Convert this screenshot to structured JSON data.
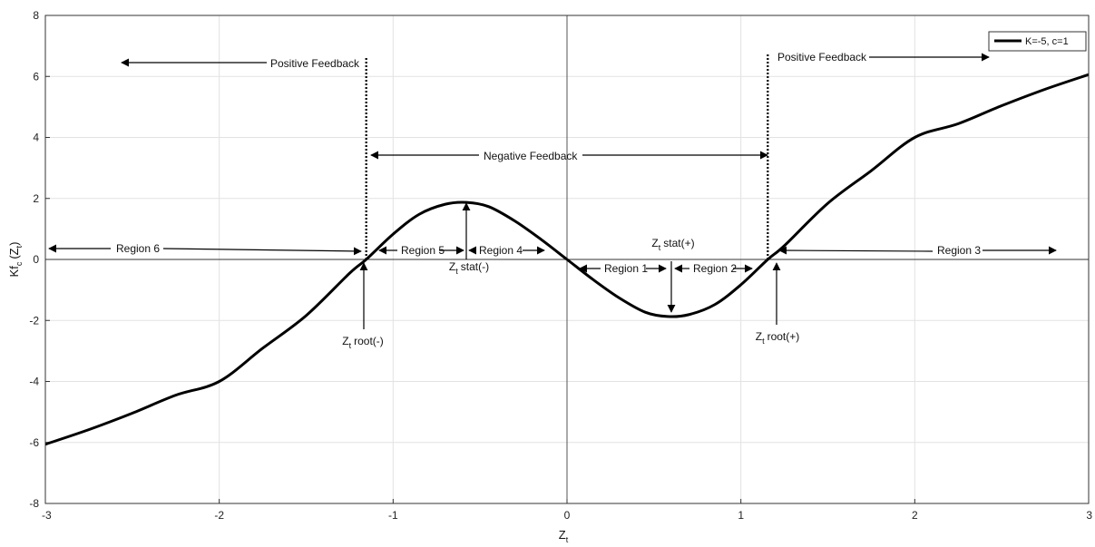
{
  "chart_data": {
    "type": "line",
    "xlabel": "Z",
    "xlabel_sub": "t",
    "ylabel": "Kf",
    "ylabel_sub": "c",
    "ylabel_paren_open": "(Z",
    "ylabel_paren_sub": "t",
    "ylabel_paren_close": ")",
    "xlim": [
      -3,
      3
    ],
    "ylim": [
      -8,
      8
    ],
    "xticks": [
      -3,
      -2,
      -1,
      0,
      1,
      2,
      3
    ],
    "yticks": [
      -8,
      -6,
      -4,
      -2,
      0,
      2,
      4,
      6,
      8
    ],
    "grid": true,
    "legend_position": "top-right",
    "series": [
      {
        "name": "K=-5, c=1",
        "color": "#000000",
        "x": [
          -3.0,
          -2.75,
          -2.5,
          -2.25,
          -2.0,
          -1.75,
          -1.5,
          -1.25,
          -1.1547,
          -1.0,
          -0.85,
          -0.7,
          -0.57735,
          -0.45,
          -0.3,
          -0.15,
          0.0,
          0.15,
          0.3,
          0.45,
          0.57735,
          0.7,
          0.85,
          1.0,
          1.1547,
          1.25,
          1.5,
          1.75,
          2.0,
          2.25,
          2.5,
          2.75,
          3.0
        ],
        "y": [
          -6.06,
          -5.58,
          -5.04,
          -4.45,
          -4.0,
          -2.91,
          -1.84,
          -0.45,
          0.0,
          0.83,
          1.48,
          1.81,
          1.87,
          1.73,
          1.26,
          0.66,
          0.0,
          -0.66,
          -1.26,
          -1.73,
          -1.87,
          -1.81,
          -1.48,
          -0.83,
          0.0,
          0.45,
          1.84,
          2.91,
          4.0,
          4.45,
          5.04,
          5.58,
          6.06
        ]
      }
    ],
    "annotations": {
      "positive_feedback_left": "Positive Feedback",
      "positive_feedback_right": "Positive Feedback",
      "negative_feedback": "Negative Feedback",
      "region1": "Region 1",
      "region2": "Region 2",
      "region3": "Region 3",
      "region4": "Region 4",
      "region5": "Region 5",
      "region6": "Region 6",
      "zt_sym": "Z",
      "zt_sub": "t",
      "stat_minus": "stat(-)",
      "stat_plus": "stat(+)",
      "root_minus": "root(-)",
      "root_plus": "root(+)"
    }
  }
}
